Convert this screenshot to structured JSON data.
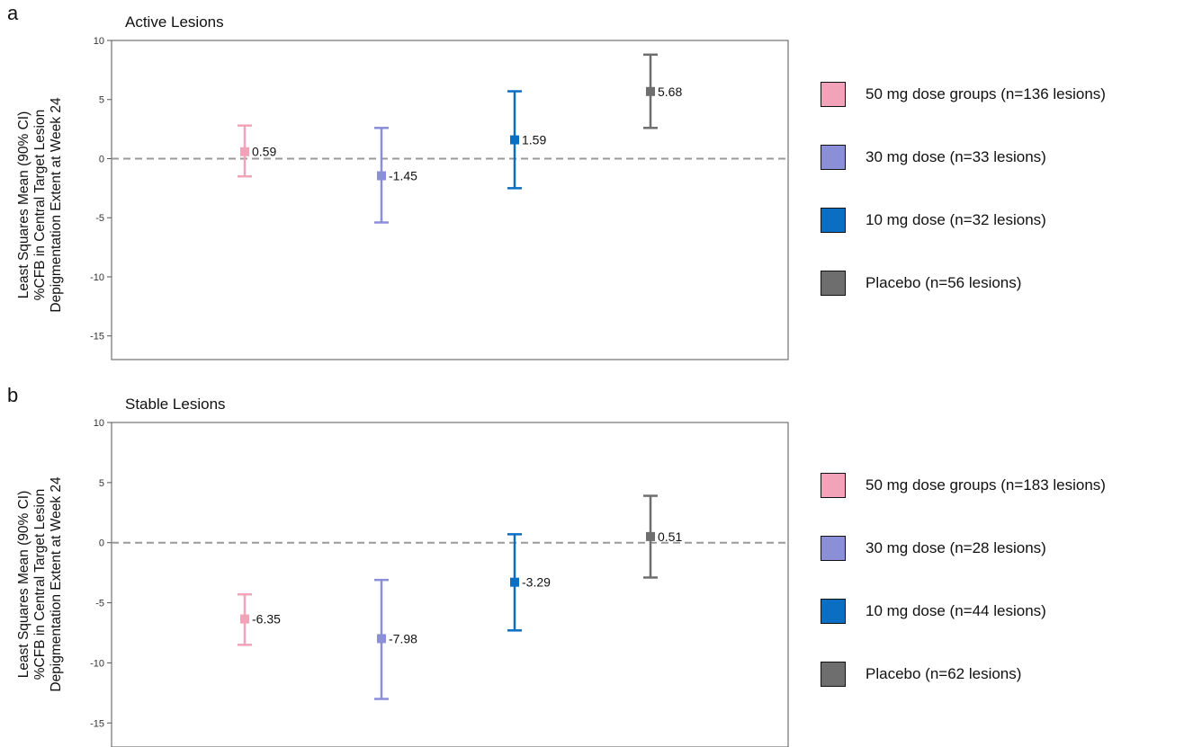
{
  "chart_data": [
    {
      "type": "scatter",
      "panel_letter": "a",
      "title": "Active Lesions",
      "ylabel": [
        "Least Squares Mean (90% CI)",
        "%CFB in Central Target Lesion",
        "Depigmentation Extent at Week 24"
      ],
      "xlabel": "",
      "ylim": [
        -17,
        10
      ],
      "yticks": [
        10,
        5,
        0,
        -5,
        -10,
        -15
      ],
      "reference_line": 0,
      "grid": false,
      "legend_position": "right",
      "series": [
        {
          "name": "50 mg dose groups (n=136 lesions)",
          "color": "#f2a3b9",
          "value": 0.59,
          "label": "0.59",
          "ci": [
            -1.5,
            2.8
          ]
        },
        {
          "name": "30 mg dose (n=33 lesions)",
          "color": "#8b8fd8",
          "value": -1.45,
          "label": "-1.45",
          "ci": [
            -5.4,
            2.6
          ]
        },
        {
          "name": "10 mg dose (n=32 lesions)",
          "color": "#0a6fc2",
          "value": 1.59,
          "label": "1.59",
          "ci": [
            -2.5,
            5.7
          ]
        },
        {
          "name": "Placebo (n=56 lesions)",
          "color": "#6e6e6e",
          "value": 5.68,
          "label": "5.68",
          "ci": [
            2.6,
            8.8
          ]
        }
      ]
    },
    {
      "type": "scatter",
      "panel_letter": "b",
      "title": "Stable Lesions",
      "ylabel": [
        "Least Squares Mean (90% CI)",
        "%CFB in Central Target Lesion",
        "Depigmentation Extent at Week 24"
      ],
      "xlabel": "",
      "ylim": [
        -17,
        10
      ],
      "yticks": [
        10,
        5,
        0,
        -5,
        -10,
        -15
      ],
      "reference_line": 0,
      "grid": false,
      "legend_position": "right",
      "series": [
        {
          "name": "50 mg dose groups (n=183 lesions)",
          "color": "#f2a3b9",
          "value": -6.35,
          "label": "-6.35",
          "ci": [
            -8.5,
            -4.3
          ]
        },
        {
          "name": "30 mg dose (n=28 lesions)",
          "color": "#8b8fd8",
          "value": -7.98,
          "label": "-7.98",
          "ci": [
            -13.0,
            -3.1
          ]
        },
        {
          "name": "10 mg dose (n=44 lesions)",
          "color": "#0a6fc2",
          "value": -3.29,
          "label": "-3.29",
          "ci": [
            -7.3,
            0.7
          ]
        },
        {
          "name": "Placebo (n=62 lesions)",
          "color": "#6e6e6e",
          "value": 0.51,
          "label": "0.51",
          "ci": [
            -2.9,
            3.9
          ]
        }
      ]
    }
  ]
}
